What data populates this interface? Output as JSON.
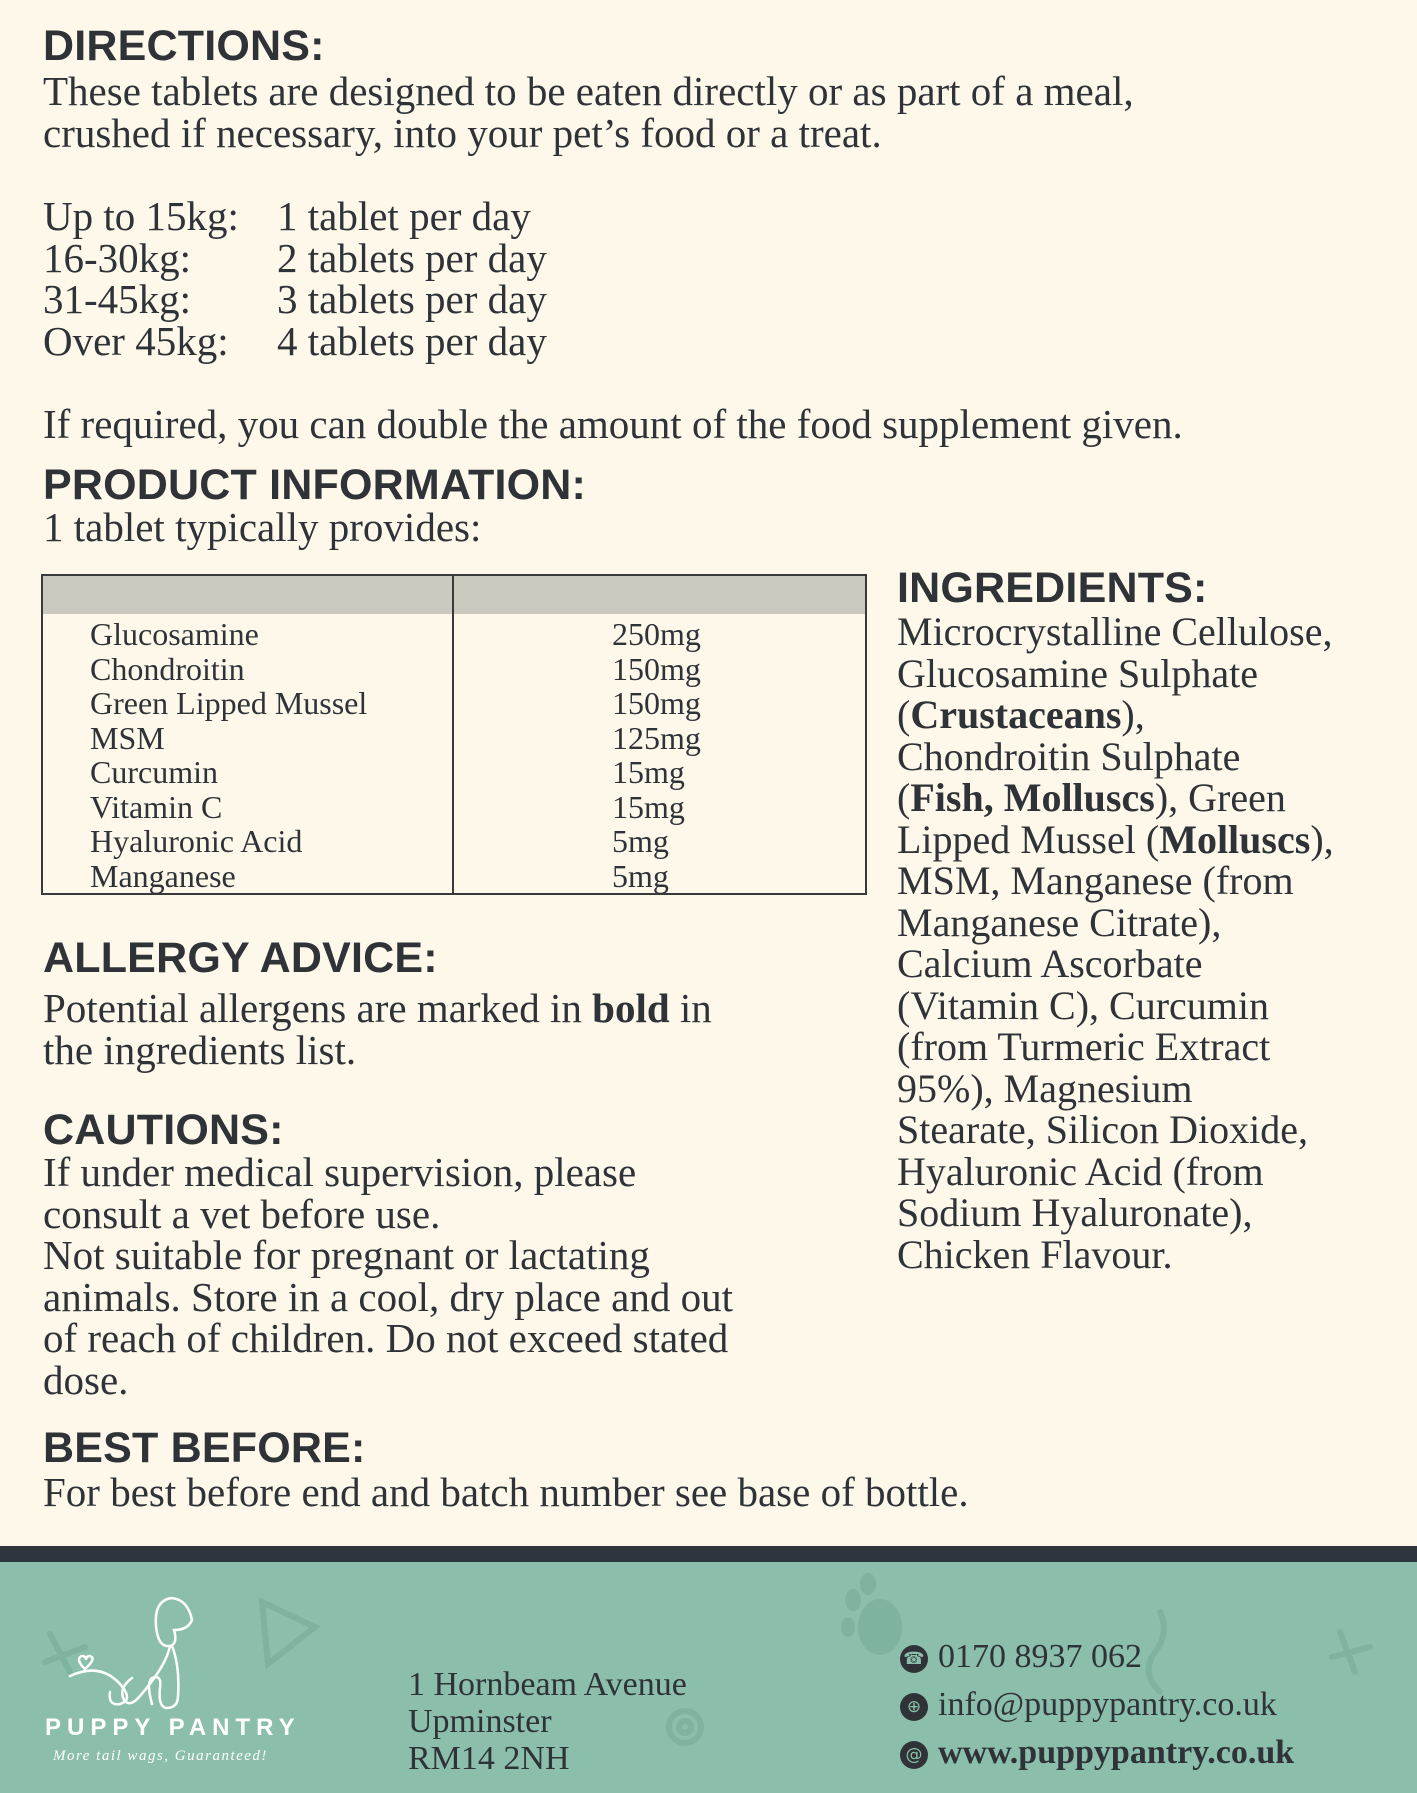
{
  "directions": {
    "heading": "DIRECTIONS:",
    "lines": [
      "These tablets are designed to be eaten directly or as part of a meal,",
      "crushed if necessary, into your pet’s food or a treat."
    ],
    "dosage": [
      {
        "weight": "Up to 15kg:",
        "amount": "1 tablet per day"
      },
      {
        "weight": "16-30kg:",
        "amount": "2 tablets per day"
      },
      {
        "weight": "31-45kg:",
        "amount": "3 tablets per day"
      },
      {
        "weight": "Over 45kg:",
        "amount": "4 tablets per day"
      }
    ],
    "note": "If required, you can double the amount of the food supplement given."
  },
  "product_info": {
    "heading": "PRODUCT INFORMATION:",
    "subheading": "1 tablet typically provides:",
    "rows": [
      {
        "name": "Glucosamine",
        "value": "250mg"
      },
      {
        "name": "Chondroitin",
        "value": "150mg"
      },
      {
        "name": "Green Lipped Mussel",
        "value": "150mg"
      },
      {
        "name": "MSM",
        "value": "125mg"
      },
      {
        "name": "Curcumin",
        "value": "15mg"
      },
      {
        "name": "Vitamin C",
        "value": "15mg"
      },
      {
        "name": "Hyaluronic Acid",
        "value": "5mg"
      },
      {
        "name": "Manganese",
        "value": "5mg"
      }
    ]
  },
  "ingredients": {
    "heading": "INGREDIENTS:",
    "lines": [
      [
        {
          "text": "Microcrystalline Cellulose,"
        }
      ],
      [
        {
          "text": "Glucosamine Sulphate"
        }
      ],
      [
        {
          "text": "("
        },
        {
          "text": "Crustaceans",
          "bold": true
        },
        {
          "text": "),"
        }
      ],
      [
        {
          "text": "Chondroitin Sulphate"
        }
      ],
      [
        {
          "text": "("
        },
        {
          "text": "Fish, Molluscs",
          "bold": true
        },
        {
          "text": "), Green"
        }
      ],
      [
        {
          "text": "Lipped Mussel ("
        },
        {
          "text": "Molluscs",
          "bold": true
        },
        {
          "text": "),"
        }
      ],
      [
        {
          "text": "MSM, Manganese (from"
        }
      ],
      [
        {
          "text": "Manganese Citrate),"
        }
      ],
      [
        {
          "text": "Calcium Ascorbate"
        }
      ],
      [
        {
          "text": "(Vitamin C), Curcumin"
        }
      ],
      [
        {
          "text": "(from Turmeric Extract"
        }
      ],
      [
        {
          "text": "95%), Magnesium"
        }
      ],
      [
        {
          "text": "Stearate, Silicon Dioxide,"
        }
      ],
      [
        {
          "text": "Hyaluronic Acid (from"
        }
      ],
      [
        {
          "text": "Sodium Hyaluronate),"
        }
      ],
      [
        {
          "text": "Chicken Flavour."
        }
      ]
    ]
  },
  "allergy": {
    "heading": "ALLERGY ADVICE:",
    "lines": [
      [
        {
          "text": "Potential allergens are marked in "
        },
        {
          "text": "bold",
          "bold": true
        },
        {
          "text": " in"
        }
      ],
      [
        {
          "text": "the ingredients list."
        }
      ]
    ]
  },
  "cautions": {
    "heading": "CAUTIONS:",
    "lines": [
      "If under medical supervision, please",
      "consult a vet before use.",
      "Not suitable for pregnant or lactating",
      "animals. Store in a cool, dry place and out",
      "of reach of children. Do not exceed stated",
      "dose."
    ]
  },
  "best_before": {
    "heading": "BEST BEFORE:",
    "text": "For best before end and batch number see base of bottle."
  },
  "footer": {
    "brand": "PUPPY PANTRY",
    "tagline": "More tail wags, Guaranteed!",
    "address": [
      "1 Hornbeam Avenue",
      "Upminster",
      "RM14 2NH"
    ],
    "contacts": [
      {
        "icon": "phone-icon",
        "glyph": "☎",
        "text": "0170 8937 062"
      },
      {
        "icon": "globe-icon",
        "glyph": "⊕",
        "text": "info@puppypantry.co.uk"
      },
      {
        "icon": "at-icon",
        "glyph": "@",
        "text": "www.puppypantry.co.uk",
        "bold": true
      }
    ],
    "colors": {
      "bar": "#2e353d",
      "background": "#8bbfac"
    }
  }
}
